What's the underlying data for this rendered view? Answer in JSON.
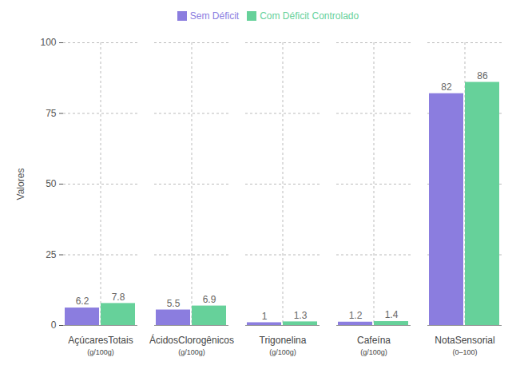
{
  "chart_data": {
    "type": "bar",
    "categories": [
      "AçúcaresTotais",
      "ÁcidosClorogênicos",
      "Trigonelina",
      "Cafeína",
      "NotaSensorial"
    ],
    "category_units": [
      "(g/100g)",
      "(g/100g)",
      "(g/100g)",
      "(g/100g)",
      "(0–100)"
    ],
    "y_label": "Valores",
    "series": [
      {
        "name": "Sem Déficit",
        "color": "#8b7ddf",
        "values": [
          6.2,
          5.5,
          1,
          1.2,
          82
        ]
      },
      {
        "name": "Com Déficit Controlado",
        "color": "#66d19a",
        "values": [
          7.8,
          6.9,
          1.3,
          1.4,
          86
        ]
      }
    ],
    "ylim": [
      0,
      100
    ],
    "yticks": [
      0,
      25,
      50,
      75,
      100
    ],
    "grid": true,
    "legend": "top",
    "data_labels": true
  }
}
